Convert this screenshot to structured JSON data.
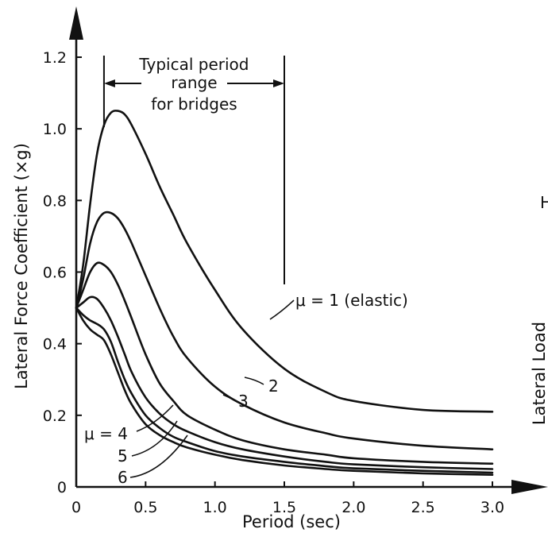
{
  "chart_data": {
    "type": "line",
    "xlabel": "Period (sec)",
    "ylabel": "Lateral Force Coefficient (×g)",
    "xlim": [
      0,
      3.0
    ],
    "ylim": [
      0,
      1.2
    ],
    "x_ticks": [
      "0",
      "0.5",
      "1.0",
      "1.5",
      "2.0",
      "2.5",
      "3.0"
    ],
    "y_ticks": [
      "0",
      "0.2",
      "0.4",
      "0.6",
      "0.8",
      "1.0",
      "1.2"
    ],
    "grid": false,
    "series": [
      {
        "name": "μ = 1 (elastic)",
        "label_text": "μ = 1 (elastic)",
        "x": [
          0,
          0.05,
          0.1,
          0.15,
          0.2,
          0.25,
          0.3,
          0.35,
          0.4,
          0.5,
          0.6,
          0.7,
          0.8,
          1.0,
          1.2,
          1.5,
          1.8,
          2.0,
          2.5,
          3.0
        ],
        "y": [
          0.5,
          0.62,
          0.79,
          0.93,
          1.01,
          1.045,
          1.05,
          1.04,
          1.01,
          0.93,
          0.84,
          0.76,
          0.68,
          0.55,
          0.44,
          0.33,
          0.265,
          0.24,
          0.215,
          0.21
        ]
      },
      {
        "name": "2",
        "label_text": "2",
        "x": [
          0,
          0.05,
          0.1,
          0.15,
          0.2,
          0.25,
          0.3,
          0.35,
          0.4,
          0.5,
          0.6,
          0.7,
          0.8,
          1.0,
          1.2,
          1.5,
          1.8,
          2.0,
          2.5,
          3.0
        ],
        "y": [
          0.5,
          0.58,
          0.68,
          0.74,
          0.765,
          0.765,
          0.75,
          0.72,
          0.68,
          0.59,
          0.5,
          0.42,
          0.36,
          0.28,
          0.23,
          0.18,
          0.15,
          0.135,
          0.115,
          0.105
        ]
      },
      {
        "name": "3",
        "label_text": "3",
        "x": [
          0,
          0.05,
          0.1,
          0.15,
          0.2,
          0.25,
          0.3,
          0.35,
          0.4,
          0.5,
          0.6,
          0.7,
          0.8,
          1.0,
          1.2,
          1.5,
          1.8,
          2.0,
          2.5,
          3.0
        ],
        "y": [
          0.5,
          0.55,
          0.6,
          0.625,
          0.62,
          0.6,
          0.565,
          0.52,
          0.47,
          0.37,
          0.29,
          0.24,
          0.2,
          0.16,
          0.13,
          0.105,
          0.09,
          0.08,
          0.07,
          0.065
        ]
      },
      {
        "name": "μ = 4",
        "label_text": "μ = 4",
        "x": [
          0,
          0.05,
          0.1,
          0.15,
          0.2,
          0.25,
          0.3,
          0.35,
          0.4,
          0.5,
          0.6,
          0.7,
          0.8,
          1.0,
          1.2,
          1.5,
          1.8,
          2.0,
          2.5,
          3.0
        ],
        "y": [
          0.5,
          0.515,
          0.53,
          0.525,
          0.5,
          0.465,
          0.42,
          0.37,
          0.32,
          0.25,
          0.205,
          0.175,
          0.155,
          0.125,
          0.105,
          0.085,
          0.07,
          0.063,
          0.055,
          0.05
        ]
      },
      {
        "name": "5",
        "label_text": "5",
        "x": [
          0,
          0.05,
          0.1,
          0.15,
          0.2,
          0.25,
          0.3,
          0.35,
          0.4,
          0.5,
          0.6,
          0.7,
          0.8,
          1.0,
          1.2,
          1.5,
          1.8,
          2.0,
          2.5,
          3.0
        ],
        "y": [
          0.5,
          0.48,
          0.465,
          0.455,
          0.44,
          0.405,
          0.35,
          0.3,
          0.26,
          0.2,
          0.165,
          0.14,
          0.125,
          0.1,
          0.085,
          0.07,
          0.058,
          0.052,
          0.045,
          0.04
        ]
      },
      {
        "name": "6",
        "label_text": "6",
        "x": [
          0,
          0.05,
          0.1,
          0.15,
          0.2,
          0.25,
          0.3,
          0.35,
          0.4,
          0.5,
          0.6,
          0.7,
          0.8,
          1.0,
          1.2,
          1.5,
          1.8,
          2.0,
          2.5,
          3.0
        ],
        "y": [
          0.5,
          0.465,
          0.44,
          0.425,
          0.41,
          0.37,
          0.32,
          0.27,
          0.23,
          0.175,
          0.145,
          0.125,
          0.11,
          0.09,
          0.075,
          0.06,
          0.05,
          0.045,
          0.038,
          0.034
        ]
      }
    ],
    "annotations": {
      "period_range_text": [
        "Typical period",
        "range",
        "for bridges"
      ],
      "period_range": [
        0.2,
        1.5
      ]
    },
    "clipped_edge_text": {
      "right_axis_text": "Lateral Load",
      "right_top_glyph": "H"
    }
  }
}
